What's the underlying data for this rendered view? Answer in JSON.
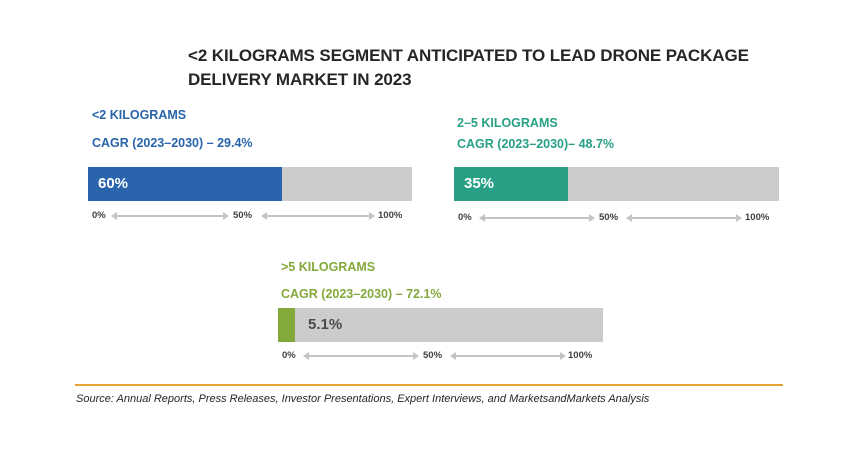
{
  "title": "<2 KILOGRAMS SEGMENT ANTICIPATED TO LEAD DRONE PACKAGE DELIVERY MARKET IN 2023",
  "colors": {
    "blue": "#2964ac",
    "teal": "#27a086",
    "green": "#84a93b",
    "track": "#cccccc",
    "rule": "#e6a532"
  },
  "chart_data": [
    {
      "type": "bar",
      "orientation": "horizontal",
      "segment": "<2 KILOGRAMS",
      "cagr": "CAGR (2023–2030) – 29.4%",
      "value": 60,
      "value_label": "60%",
      "xlim": [
        0,
        100
      ],
      "ticks": [
        "0%",
        "50%",
        "100%"
      ],
      "color": "#2964ac"
    },
    {
      "type": "bar",
      "orientation": "horizontal",
      "segment": "2–5 KILOGRAMS",
      "cagr": "CAGR  (2023–2030)– 48.7%",
      "value": 35,
      "value_label": "35%",
      "xlim": [
        0,
        100
      ],
      "ticks": [
        "0%",
        "50%",
        "100%"
      ],
      "color": "#27a086"
    },
    {
      "type": "bar",
      "orientation": "horizontal",
      "segment": ">5 KILOGRAMS",
      "cagr": "CAGR (2023–2030) – 72.1%",
      "value": 5.1,
      "value_label": "5.1%",
      "xlim": [
        0,
        100
      ],
      "ticks": [
        "0%",
        "50%",
        "100%"
      ],
      "color": "#84a93b"
    }
  ],
  "source": "Source: Annual Reports, Press Releases, Investor Presentations, Expert Interviews, and MarketsandMarkets Analysis"
}
